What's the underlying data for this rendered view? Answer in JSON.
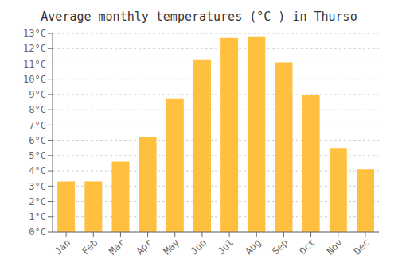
{
  "chart_data": {
    "type": "bar",
    "title": "Average monthly temperatures (°C ) in Thurso",
    "categories": [
      "Jan",
      "Feb",
      "Mar",
      "Apr",
      "May",
      "Jun",
      "Jul",
      "Aug",
      "Sep",
      "Oct",
      "Nov",
      "Dec"
    ],
    "values": [
      3.3,
      3.3,
      4.6,
      6.2,
      8.7,
      11.3,
      12.7,
      12.8,
      11.1,
      9.0,
      5.5,
      4.1
    ],
    "color": "#FFC040",
    "ylim": [
      0,
      13
    ],
    "yticks": [
      {
        "value": 0,
        "label": "0°C"
      },
      {
        "value": 1,
        "label": "1°C"
      },
      {
        "value": 2,
        "label": "2°C"
      },
      {
        "value": 3,
        "label": "3°C"
      },
      {
        "value": 4,
        "label": "4°C"
      },
      {
        "value": 5,
        "label": "5°C"
      },
      {
        "value": 6,
        "label": "6°C"
      },
      {
        "value": 7,
        "label": "7°C"
      },
      {
        "value": 8,
        "label": "8°C"
      },
      {
        "value": 9,
        "label": "9°C"
      },
      {
        "value": 10,
        "label": "10°C"
      },
      {
        "value": 11,
        "label": "11°C"
      },
      {
        "value": 12,
        "label": "12°C"
      },
      {
        "value": 13,
        "label": "13°C"
      }
    ],
    "grid": true
  }
}
